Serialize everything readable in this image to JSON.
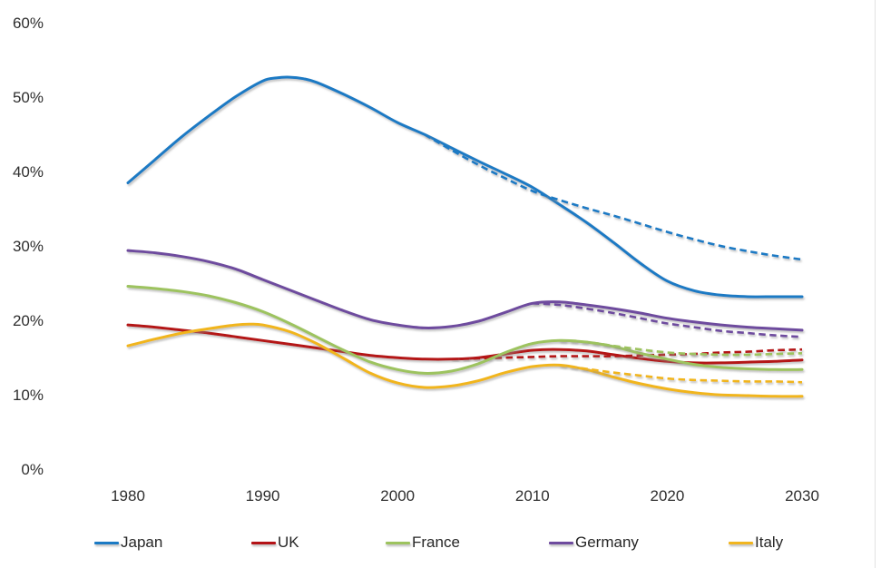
{
  "chart_data": {
    "type": "line",
    "title": "",
    "xlabel": "",
    "ylabel": "",
    "xlim": [
      1980,
      2030
    ],
    "ylim": [
      0,
      60
    ],
    "grid": false,
    "legend_position": "bottom",
    "x_ticks": [
      {
        "label": "1980",
        "value": 1980
      },
      {
        "label": "1990",
        "value": 1990
      },
      {
        "label": "2000",
        "value": 2000
      },
      {
        "label": "2010",
        "value": 2010
      },
      {
        "label": "2020",
        "value": 2020
      },
      {
        "label": "2030",
        "value": 2030
      }
    ],
    "y_ticks": [
      {
        "label": "0%",
        "value": 0
      },
      {
        "label": "10%",
        "value": 10
      },
      {
        "label": "20%",
        "value": 20
      },
      {
        "label": "30%",
        "value": 30
      },
      {
        "label": "40%",
        "value": 40
      },
      {
        "label": "50%",
        "value": 50
      },
      {
        "label": "60%",
        "value": 60
      }
    ],
    "series": [
      {
        "name": "Japan",
        "style": "solid",
        "color": "#1b7ac4",
        "points": [
          [
            1980,
            38.5
          ],
          [
            1982,
            41.6
          ],
          [
            1984,
            44.7
          ],
          [
            1986,
            47.5
          ],
          [
            1988,
            50.1
          ],
          [
            1990,
            52.2
          ],
          [
            1991,
            52.6
          ],
          [
            1992,
            52.7
          ],
          [
            1993,
            52.5
          ],
          [
            1994,
            52.0
          ],
          [
            1996,
            50.4
          ],
          [
            1998,
            48.6
          ],
          [
            2000,
            46.6
          ],
          [
            2002,
            45.0
          ],
          [
            2004,
            43.2
          ],
          [
            2006,
            41.4
          ],
          [
            2008,
            39.7
          ],
          [
            2010,
            37.9
          ],
          [
            2012,
            35.6
          ],
          [
            2014,
            33.2
          ],
          [
            2016,
            30.5
          ],
          [
            2018,
            27.7
          ],
          [
            2020,
            25.3
          ],
          [
            2022,
            24.0
          ],
          [
            2024,
            23.4
          ],
          [
            2026,
            23.2
          ],
          [
            2028,
            23.2
          ],
          [
            2030,
            23.2
          ]
        ]
      },
      {
        "name": "Japan",
        "style": "dashed",
        "color": "#1b7ac4",
        "points": [
          [
            2002,
            45.0
          ],
          [
            2004,
            42.9
          ],
          [
            2006,
            40.9
          ],
          [
            2008,
            39.1
          ],
          [
            2010,
            37.4
          ],
          [
            2012,
            36.2
          ],
          [
            2014,
            35.1
          ],
          [
            2016,
            34.1
          ],
          [
            2018,
            33.0
          ],
          [
            2020,
            31.9
          ],
          [
            2022,
            30.9
          ],
          [
            2024,
            30.0
          ],
          [
            2026,
            29.3
          ],
          [
            2028,
            28.7
          ],
          [
            2030,
            28.2
          ]
        ]
      },
      {
        "name": "UK",
        "style": "solid",
        "color": "#b41216",
        "points": [
          [
            1980,
            19.4
          ],
          [
            1982,
            19.1
          ],
          [
            1984,
            18.7
          ],
          [
            1986,
            18.3
          ],
          [
            1988,
            17.8
          ],
          [
            1990,
            17.3
          ],
          [
            1992,
            16.8
          ],
          [
            1994,
            16.3
          ],
          [
            1996,
            15.8
          ],
          [
            1998,
            15.3
          ],
          [
            2000,
            15.0
          ],
          [
            2002,
            14.8
          ],
          [
            2004,
            14.8
          ],
          [
            2006,
            15.0
          ],
          [
            2008,
            15.5
          ],
          [
            2010,
            16.0
          ],
          [
            2012,
            16.1
          ],
          [
            2014,
            15.9
          ],
          [
            2016,
            15.4
          ],
          [
            2018,
            14.9
          ],
          [
            2020,
            14.5
          ],
          [
            2022,
            14.3
          ],
          [
            2024,
            14.3
          ],
          [
            2026,
            14.4
          ],
          [
            2028,
            14.5
          ],
          [
            2030,
            14.7
          ]
        ]
      },
      {
        "name": "UK",
        "style": "dashed",
        "color": "#b41216",
        "points": [
          [
            2004,
            14.8
          ],
          [
            2006,
            14.9
          ],
          [
            2008,
            15.0
          ],
          [
            2010,
            15.1
          ],
          [
            2012,
            15.2
          ],
          [
            2014,
            15.2
          ],
          [
            2016,
            15.2
          ],
          [
            2018,
            15.3
          ],
          [
            2020,
            15.4
          ],
          [
            2022,
            15.5
          ],
          [
            2024,
            15.7
          ],
          [
            2026,
            15.8
          ],
          [
            2028,
            16.0
          ],
          [
            2030,
            16.1
          ]
        ]
      },
      {
        "name": "France",
        "style": "solid",
        "color": "#9dc35e",
        "points": [
          [
            1980,
            24.6
          ],
          [
            1982,
            24.3
          ],
          [
            1984,
            23.9
          ],
          [
            1986,
            23.3
          ],
          [
            1988,
            22.4
          ],
          [
            1990,
            21.2
          ],
          [
            1992,
            19.6
          ],
          [
            1994,
            17.8
          ],
          [
            1996,
            16.0
          ],
          [
            1998,
            14.4
          ],
          [
            2000,
            13.4
          ],
          [
            2002,
            12.9
          ],
          [
            2004,
            13.2
          ],
          [
            2006,
            14.2
          ],
          [
            2008,
            15.7
          ],
          [
            2010,
            16.9
          ],
          [
            2012,
            17.3
          ],
          [
            2014,
            17.1
          ],
          [
            2016,
            16.5
          ],
          [
            2018,
            15.6
          ],
          [
            2020,
            14.8
          ],
          [
            2022,
            14.1
          ],
          [
            2024,
            13.7
          ],
          [
            2026,
            13.5
          ],
          [
            2028,
            13.4
          ],
          [
            2030,
            13.4
          ]
        ]
      },
      {
        "name": "France",
        "style": "dashed",
        "color": "#9dc35e",
        "points": [
          [
            2012,
            17.3
          ],
          [
            2014,
            17.1
          ],
          [
            2016,
            16.6
          ],
          [
            2018,
            16.1
          ],
          [
            2020,
            15.7
          ],
          [
            2022,
            15.5
          ],
          [
            2024,
            15.4
          ],
          [
            2026,
            15.4
          ],
          [
            2028,
            15.5
          ],
          [
            2030,
            15.6
          ]
        ]
      },
      {
        "name": "Germany",
        "style": "solid",
        "color": "#6e4b9e",
        "points": [
          [
            1980,
            29.4
          ],
          [
            1982,
            29.1
          ],
          [
            1984,
            28.6
          ],
          [
            1986,
            27.9
          ],
          [
            1988,
            26.9
          ],
          [
            1990,
            25.5
          ],
          [
            1992,
            24.1
          ],
          [
            1994,
            22.7
          ],
          [
            1996,
            21.3
          ],
          [
            1998,
            20.1
          ],
          [
            2000,
            19.4
          ],
          [
            2002,
            19.0
          ],
          [
            2004,
            19.2
          ],
          [
            2006,
            19.9
          ],
          [
            2008,
            21.1
          ],
          [
            2010,
            22.3
          ],
          [
            2012,
            22.5
          ],
          [
            2014,
            22.1
          ],
          [
            2016,
            21.6
          ],
          [
            2018,
            21.0
          ],
          [
            2020,
            20.3
          ],
          [
            2022,
            19.8
          ],
          [
            2024,
            19.4
          ],
          [
            2026,
            19.1
          ],
          [
            2028,
            18.9
          ],
          [
            2030,
            18.7
          ]
        ]
      },
      {
        "name": "Germany",
        "style": "dashed",
        "color": "#6e4b9e",
        "points": [
          [
            2010,
            22.3
          ],
          [
            2012,
            22.1
          ],
          [
            2014,
            21.6
          ],
          [
            2016,
            21.0
          ],
          [
            2018,
            20.3
          ],
          [
            2020,
            19.6
          ],
          [
            2022,
            19.1
          ],
          [
            2024,
            18.6
          ],
          [
            2026,
            18.3
          ],
          [
            2028,
            18.0
          ],
          [
            2030,
            17.8
          ]
        ]
      },
      {
        "name": "Italy",
        "style": "solid",
        "color": "#f1b51f",
        "points": [
          [
            1980,
            16.6
          ],
          [
            1982,
            17.5
          ],
          [
            1984,
            18.3
          ],
          [
            1986,
            18.9
          ],
          [
            1988,
            19.4
          ],
          [
            1989,
            19.5
          ],
          [
            1990,
            19.4
          ],
          [
            1992,
            18.5
          ],
          [
            1994,
            16.9
          ],
          [
            1996,
            14.9
          ],
          [
            1998,
            12.9
          ],
          [
            2000,
            11.6
          ],
          [
            2002,
            11.0
          ],
          [
            2004,
            11.2
          ],
          [
            2006,
            11.9
          ],
          [
            2008,
            13.0
          ],
          [
            2010,
            13.8
          ],
          [
            2012,
            14.0
          ],
          [
            2014,
            13.4
          ],
          [
            2016,
            12.4
          ],
          [
            2018,
            11.5
          ],
          [
            2020,
            10.8
          ],
          [
            2022,
            10.3
          ],
          [
            2024,
            10.0
          ],
          [
            2026,
            9.9
          ],
          [
            2028,
            9.8
          ],
          [
            2030,
            9.8
          ]
        ]
      },
      {
        "name": "Italy",
        "style": "dashed",
        "color": "#f1b51f",
        "points": [
          [
            2012,
            14.0
          ],
          [
            2014,
            13.5
          ],
          [
            2016,
            13.0
          ],
          [
            2018,
            12.6
          ],
          [
            2020,
            12.2
          ],
          [
            2022,
            12.0
          ],
          [
            2024,
            11.9
          ],
          [
            2026,
            11.8
          ],
          [
            2028,
            11.8
          ],
          [
            2030,
            11.7
          ]
        ]
      }
    ]
  },
  "legend": {
    "items": [
      {
        "label": "Japan",
        "color": "#1b7ac4"
      },
      {
        "label": "UK",
        "color": "#b41216"
      },
      {
        "label": "France",
        "color": "#9dc35e"
      },
      {
        "label": "Germany",
        "color": "#6e4b9e"
      },
      {
        "label": "Italy",
        "color": "#f1b51f"
      }
    ]
  }
}
